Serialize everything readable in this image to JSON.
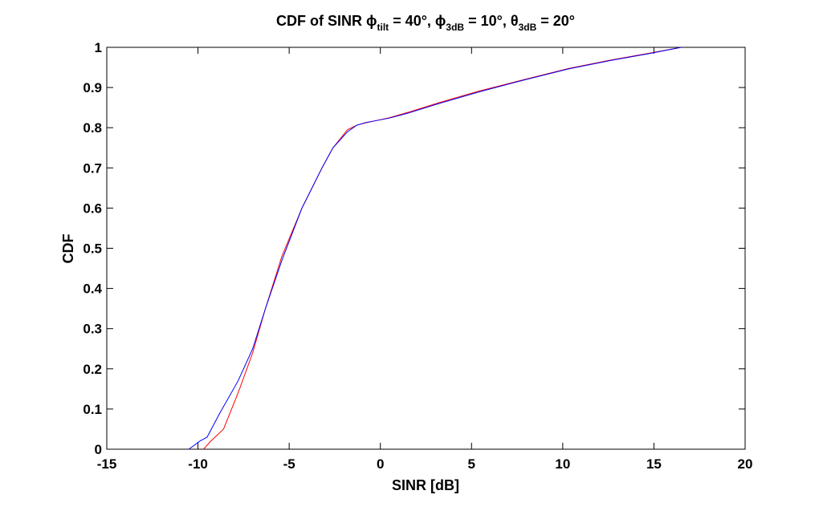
{
  "chart_data": {
    "type": "line",
    "title": {
      "prefix": "CDF of SINR ",
      "phi": "ϕ",
      "tilt_sub": "tilt",
      "tilt_value": " = 40°, ",
      "phi3": "ϕ",
      "phi3_sub": "3dB",
      "phi3_value": " = 10°, ",
      "theta": "θ",
      "theta_sub": "3dB",
      "theta_value": " = 20°"
    },
    "xlabel": "SINR [dB]",
    "ylabel": "CDF",
    "xlim": [
      -15,
      20
    ],
    "ylim": [
      0,
      1
    ],
    "xticks": [
      -15,
      -10,
      -5,
      0,
      5,
      10,
      15,
      20
    ],
    "yticks": [
      0,
      0.1,
      0.2,
      0.3,
      0.4,
      0.5,
      0.6,
      0.7,
      0.8,
      0.9,
      1
    ],
    "xtick_labels": [
      "-15",
      "-10",
      "-5",
      "0",
      "5",
      "10",
      "15",
      "20"
    ],
    "ytick_labels": [
      "0",
      "0.1",
      "0.2",
      "0.3",
      "0.4",
      "0.5",
      "0.6",
      "0.7",
      "0.8",
      "0.9",
      "1"
    ],
    "grid": false,
    "series": [
      {
        "color": "#ff0000",
        "x": [
          -9.7,
          -9.3,
          -8.6,
          -7.8,
          -7.0,
          -6.3,
          -5.4,
          -4.3,
          -3.2,
          -2.6,
          -1.8,
          -1.3,
          -0.8,
          -0.3,
          0.5,
          1.5,
          3.2,
          5.4,
          7.9,
          10.3,
          12.6,
          14.7,
          16.5
        ],
        "y": [
          0.0,
          0.02,
          0.05,
          0.14,
          0.24,
          0.35,
          0.48,
          0.6,
          0.7,
          0.75,
          0.795,
          0.806,
          0.812,
          0.817,
          0.825,
          0.838,
          0.862,
          0.891,
          0.92,
          0.947,
          0.968,
          0.985,
          1.0
        ]
      },
      {
        "color": "#0000ff",
        "x": [
          -10.5,
          -9.9,
          -9.5,
          -8.8,
          -7.8,
          -7.0,
          -6.3,
          -5.4,
          -4.3,
          -3.2,
          -2.6,
          -1.8,
          -1.3,
          -0.8,
          -0.3,
          0.5,
          1.5,
          3.2,
          5.4,
          7.9,
          10.3,
          12.6,
          14.7,
          16.5
        ],
        "y": [
          0.0,
          0.02,
          0.03,
          0.09,
          0.17,
          0.25,
          0.35,
          0.47,
          0.6,
          0.7,
          0.75,
          0.79,
          0.806,
          0.813,
          0.817,
          0.824,
          0.836,
          0.86,
          0.889,
          0.919,
          0.946,
          0.967,
          0.984,
          1.0
        ]
      }
    ]
  }
}
